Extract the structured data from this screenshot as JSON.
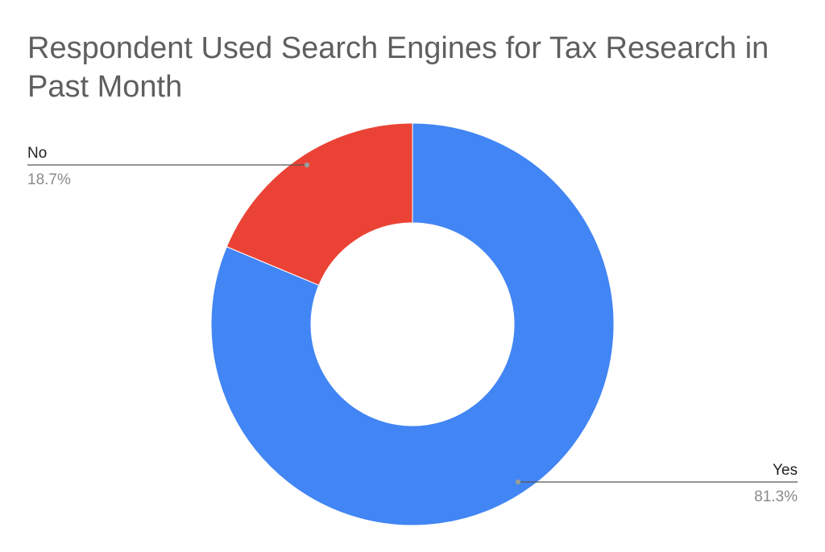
{
  "chart_data": {
    "type": "pie",
    "style": "donut",
    "title": "Respondent Used Search Engines for Tax Research in Past Month",
    "slices": [
      {
        "label": "Yes",
        "value": 81.3,
        "value_label": "81.3%",
        "color": "#4285f4"
      },
      {
        "label": "No",
        "value": 18.7,
        "value_label": "18.7%",
        "color": "#ea4335"
      }
    ],
    "legend": "none",
    "labels": "outside with leader lines"
  }
}
